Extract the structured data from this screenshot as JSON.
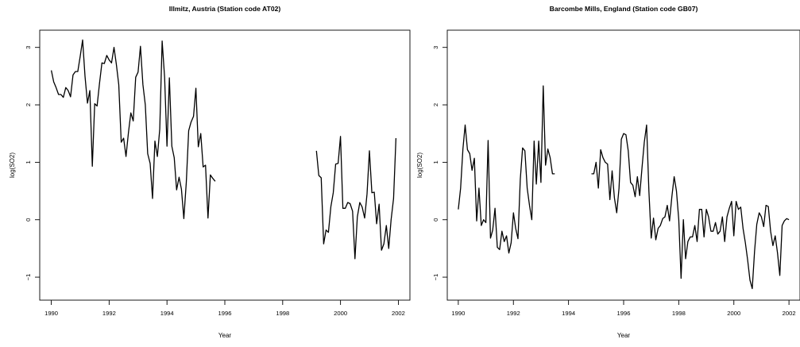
{
  "chart_data": [
    {
      "type": "line",
      "title": "Illmitz, Austria (Station code AT02)",
      "xlabel": "Year",
      "ylabel": "log(SO2)",
      "xlim": [
        1989.6,
        2002.4
      ],
      "ylim": [
        -1.4,
        3.3
      ],
      "xticks": [
        1990,
        1992,
        1994,
        1996,
        1998,
        2000,
        2002
      ],
      "yticks": [
        -1,
        0,
        1,
        2,
        3
      ],
      "grid": false,
      "series": [
        {
          "x": [
            1990.0,
            1990.083,
            1990.167,
            1990.25,
            1990.333,
            1990.417,
            1990.5,
            1990.583,
            1990.667,
            1990.75,
            1990.833,
            1990.917,
            1991.0,
            1991.083,
            1991.167,
            1991.25,
            1991.333,
            1991.417,
            1991.5,
            1991.583,
            1991.667,
            1991.75,
            1991.833,
            1991.917,
            1992.0,
            1992.083,
            1992.167,
            1992.25,
            1992.333,
            1992.417,
            1992.5,
            1992.583,
            1992.667,
            1992.75,
            1992.833,
            1992.917,
            1993.0,
            1993.083,
            1993.167,
            1993.25,
            1993.333,
            1993.417,
            1993.5,
            1993.583,
            1993.667,
            1993.75,
            1993.833,
            1993.917,
            1994.0,
            1994.083,
            1994.167,
            1994.25,
            1994.333,
            1994.417,
            1994.5,
            1994.583,
            1994.667,
            1994.75,
            1994.833,
            1994.917,
            1995.0,
            1995.083,
            1995.167,
            1995.25,
            1995.333,
            1995.417,
            1995.5,
            1995.583,
            1995.667
          ],
          "y": [
            2.6,
            2.4,
            2.3,
            2.18,
            2.18,
            2.13,
            2.3,
            2.25,
            2.14,
            2.52,
            2.58,
            2.58,
            2.85,
            3.13,
            2.5,
            2.03,
            2.25,
            0.93,
            2.02,
            1.98,
            2.38,
            2.73,
            2.72,
            2.86,
            2.78,
            2.73,
            3.0,
            2.7,
            2.35,
            1.35,
            1.42,
            1.1,
            1.52,
            1.86,
            1.72,
            2.48,
            2.57,
            3.02,
            2.35,
            2.0,
            1.15,
            0.98,
            0.37,
            1.37,
            1.1,
            1.58,
            3.11,
            2.48,
            1.28,
            2.47,
            1.28,
            1.08,
            0.52,
            0.74,
            0.53,
            0.02,
            0.65,
            1.55,
            1.7,
            1.8,
            2.29,
            1.27,
            1.5,
            0.92,
            0.95,
            0.03,
            0.78,
            0.72,
            0.67
          ]
        },
        {
          "x": [
            1999.167,
            1999.25,
            1999.333,
            1999.417,
            1999.5,
            1999.583,
            1999.667,
            1999.75,
            1999.833,
            1999.917,
            2000.0,
            2000.083,
            2000.167,
            2000.25,
            2000.333,
            2000.417,
            2000.5,
            2000.583,
            2000.667,
            2000.75,
            2000.833,
            2000.917,
            2001.0,
            2001.083,
            2001.167,
            2001.25,
            2001.333,
            2001.417,
            2001.5,
            2001.583,
            2001.667,
            2001.75,
            2001.833,
            2001.917
          ],
          "y": [
            1.2,
            0.77,
            0.73,
            -0.42,
            -0.18,
            -0.22,
            0.23,
            0.47,
            0.97,
            0.98,
            1.45,
            0.2,
            0.2,
            0.3,
            0.28,
            0.15,
            -0.68,
            0.05,
            0.3,
            0.22,
            0.03,
            0.45,
            1.2,
            0.47,
            0.48,
            -0.07,
            0.27,
            -0.53,
            -0.42,
            -0.1,
            -0.5,
            0.0,
            0.37,
            1.42
          ]
        }
      ]
    },
    {
      "type": "line",
      "title": "Barcombe Mills, England (Station code GB07)",
      "xlabel": "Year",
      "ylabel": "log(SO2)",
      "xlim": [
        1989.6,
        2002.4
      ],
      "ylim": [
        -1.4,
        3.3
      ],
      "xticks": [
        1990,
        1992,
        1994,
        1996,
        1998,
        2000,
        2002
      ],
      "yticks": [
        -1,
        0,
        1,
        2,
        3
      ],
      "grid": false,
      "series": [
        {
          "x": [
            1990.0,
            1990.083,
            1990.167,
            1990.25,
            1990.333,
            1990.417,
            1990.5,
            1990.583,
            1990.667,
            1990.75,
            1990.833,
            1990.917,
            1991.0,
            1991.083,
            1991.167,
            1991.25,
            1991.333,
            1991.417,
            1991.5,
            1991.583,
            1991.667,
            1991.75,
            1991.833,
            1991.917,
            1992.0,
            1992.083,
            1992.167,
            1992.25,
            1992.333,
            1992.417,
            1992.5,
            1992.583,
            1992.667,
            1992.75,
            1992.833,
            1992.917,
            1993.0,
            1993.083,
            1993.167,
            1993.25,
            1993.333,
            1993.417,
            1993.5
          ],
          "y": [
            0.18,
            0.55,
            1.23,
            1.65,
            1.22,
            1.15,
            0.86,
            1.07,
            -0.02,
            0.55,
            -0.1,
            0.0,
            -0.05,
            1.38,
            -0.32,
            -0.18,
            0.2,
            -0.48,
            -0.52,
            -0.2,
            -0.38,
            -0.28,
            -0.58,
            -0.4,
            0.12,
            -0.15,
            -0.33,
            0.7,
            1.25,
            1.2,
            0.55,
            0.25,
            0.0,
            1.37,
            0.62,
            1.37,
            0.65,
            2.33,
            0.95,
            1.23,
            1.08,
            0.8,
            0.8
          ]
        },
        {
          "x": [
            1994.833,
            1994.917,
            1995.0,
            1995.083,
            1995.167,
            1995.25,
            1995.333,
            1995.417,
            1995.5,
            1995.583,
            1995.667,
            1995.75,
            1995.833,
            1995.917,
            1996.0,
            1996.083,
            1996.167,
            1996.25,
            1996.333,
            1996.417,
            1996.5,
            1996.583,
            1996.667,
            1996.75,
            1996.833,
            1996.917,
            1997.0,
            1997.083,
            1997.167,
            1997.25,
            1997.333,
            1997.417,
            1997.5,
            1997.583,
            1997.667,
            1997.75,
            1997.833,
            1997.917,
            1998.0,
            1998.083,
            1998.167,
            1998.25,
            1998.333,
            1998.417,
            1998.5,
            1998.583,
            1998.667,
            1998.75,
            1998.833,
            1998.917,
            1999.0,
            1999.083,
            1999.167,
            1999.25,
            1999.333,
            1999.417,
            1999.5,
            1999.583,
            1999.667,
            1999.75,
            1999.833,
            1999.917,
            2000.0,
            2000.083,
            2000.167,
            2000.25,
            2000.333,
            2000.417,
            2000.5,
            2000.583,
            2000.667,
            2000.75,
            2000.833,
            2000.917,
            2001.0,
            2001.083,
            2001.167,
            2001.25,
            2001.333,
            2001.417,
            2001.5,
            2001.583,
            2001.667,
            2001.75,
            2001.833,
            2001.917,
            2002.0
          ],
          "y": [
            0.8,
            0.8,
            1.0,
            0.55,
            1.22,
            1.08,
            1.0,
            0.97,
            0.35,
            0.85,
            0.38,
            0.12,
            0.55,
            1.4,
            1.5,
            1.48,
            1.2,
            0.65,
            0.6,
            0.4,
            0.75,
            0.42,
            0.9,
            1.35,
            1.65,
            0.5,
            -0.32,
            0.03,
            -0.35,
            -0.15,
            -0.1,
            0.02,
            0.05,
            0.25,
            -0.02,
            0.4,
            0.75,
            0.5,
            0.0,
            -1.02,
            0.0,
            -0.68,
            -0.38,
            -0.3,
            -0.3,
            -0.1,
            -0.38,
            0.18,
            0.18,
            -0.3,
            0.18,
            0.05,
            -0.2,
            -0.2,
            -0.05,
            -0.25,
            -0.2,
            0.05,
            -0.38,
            0.05,
            0.2,
            0.32,
            -0.28,
            0.32,
            0.18,
            0.22,
            -0.15,
            -0.4,
            -0.7,
            -1.05,
            -1.2,
            -0.55,
            -0.08,
            0.12,
            0.05,
            -0.12,
            0.25,
            0.23,
            -0.2,
            -0.45,
            -0.28,
            -0.58,
            -0.97,
            -0.1,
            -0.02,
            0.02,
            0.0
          ]
        }
      ]
    }
  ]
}
